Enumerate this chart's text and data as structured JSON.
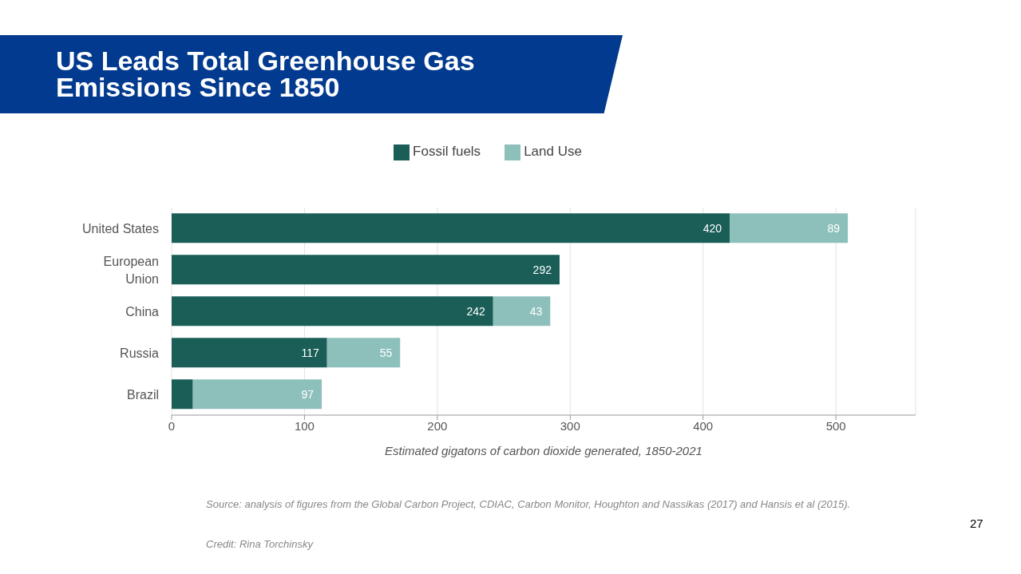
{
  "chart_data": {
    "type": "bar",
    "orientation": "horizontal",
    "stacked": true,
    "title": "US Leads Total Greenhouse Gas Emissions Since 1850",
    "xlabel": "Estimated gigatons of carbon dioxide generated, 1850-2021",
    "categories": [
      "United States",
      "European Union",
      "China",
      "Russia",
      "Brazil"
    ],
    "series": [
      {
        "name": "Fossil fuels",
        "color": "#1a5e57",
        "values": [
          420,
          292,
          242,
          117,
          16
        ],
        "value_labels": [
          "420",
          "292",
          "242",
          "117",
          null
        ]
      },
      {
        "name": "Land Use",
        "color": "#8ec0bb",
        "values": [
          89,
          null,
          43,
          55,
          97
        ],
        "value_labels": [
          "89",
          null,
          "43",
          "55",
          "97"
        ]
      }
    ],
    "xlim": [
      0,
      560
    ],
    "xticks": [
      0,
      100,
      200,
      300,
      400,
      500
    ],
    "grid": "x",
    "legend": "top",
    "annotations": [
      "Source: analysis of figures from the Global Carbon Project, CDIAC, Carbon Monitor, Houghton and Nassikas (2017) and Hansis et al (2015).",
      "Credit: Rina Torchinsky",
      "27"
    ]
  }
}
